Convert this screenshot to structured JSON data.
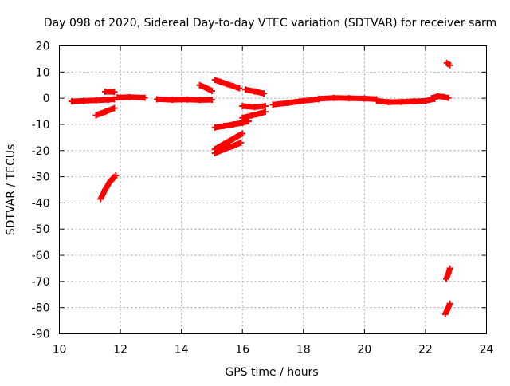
{
  "chart_data": {
    "type": "scatter",
    "title": "Day 098 of 2020, Sidereal Day-to-day VTEC variation (SDTVAR) for receiver sarm",
    "xlabel": "GPS time / hours",
    "ylabel": "SDTVAR / TECUs",
    "xlim": [
      10,
      24
    ],
    "ylim": [
      -90,
      20
    ],
    "xticks": [
      10,
      12,
      14,
      16,
      18,
      20,
      22,
      24
    ],
    "yticks": [
      -90,
      -80,
      -70,
      -60,
      -50,
      -40,
      -30,
      -20,
      -10,
      0,
      10,
      20
    ],
    "xtick_labels": [
      "10",
      "12",
      "14",
      "16",
      "18",
      "20",
      "22",
      "24"
    ],
    "ytick_labels": [
      "-90",
      "-80",
      "-70",
      "-60",
      "-50",
      "-40",
      "-30",
      "-20",
      "-10",
      "0",
      "10",
      "20"
    ],
    "grid": true,
    "legend": "none",
    "marker": "plus",
    "color": "#ff0000",
    "series": [
      {
        "x": [
          10.4,
          10.8,
          11.2,
          11.6,
          11.8
        ],
        "y": [
          -1.2,
          -1.0,
          -0.8,
          -0.6,
          -0.4
        ]
      },
      {
        "x": [
          11.2,
          11.5,
          11.8
        ],
        "y": [
          -6.5,
          -5.2,
          -3.8
        ]
      },
      {
        "x": [
          11.5,
          11.8
        ],
        "y": [
          2.5,
          2.4
        ]
      },
      {
        "x": [
          11.35,
          11.5,
          11.65,
          11.85
        ],
        "y": [
          -38.5,
          -35.0,
          -32.0,
          -29.5
        ]
      },
      {
        "x": [
          11.9,
          12.3,
          12.8
        ],
        "y": [
          0.3,
          0.4,
          0.2
        ]
      },
      {
        "x": [
          13.2,
          13.7,
          14.2,
          14.6,
          15.0
        ],
        "y": [
          -0.4,
          -0.6,
          -0.5,
          -0.7,
          -0.6
        ]
      },
      {
        "x": [
          14.6,
          14.8,
          15.0
        ],
        "y": [
          5.0,
          4.0,
          2.8
        ]
      },
      {
        "x": [
          15.1,
          15.3,
          15.5,
          15.7,
          15.9
        ],
        "y": [
          7.0,
          6.2,
          5.4,
          4.6,
          3.8
        ]
      },
      {
        "x": [
          15.1,
          15.4,
          15.7,
          16.0,
          16.2
        ],
        "y": [
          -11.2,
          -10.6,
          -10.0,
          -9.4,
          -8.8
        ]
      },
      {
        "x": [
          15.1,
          15.4,
          15.7,
          16.0
        ],
        "y": [
          -19.5,
          -17.5,
          -15.5,
          -13.5
        ]
      },
      {
        "x": [
          15.1,
          15.4,
          15.7,
          15.95
        ],
        "y": [
          -21.0,
          -19.5,
          -18.2,
          -17.0
        ]
      },
      {
        "x": [
          16.1,
          16.4,
          16.7
        ],
        "y": [
          3.3,
          2.6,
          1.8
        ]
      },
      {
        "x": [
          16.0,
          16.3,
          16.6,
          16.75
        ],
        "y": [
          -7.5,
          -6.6,
          -5.8,
          -5.2
        ]
      },
      {
        "x": [
          16.0,
          16.4,
          16.75
        ],
        "y": [
          -3.0,
          -3.4,
          -3.0
        ]
      },
      {
        "x": [
          17.0,
          17.5,
          18.0,
          18.5
        ],
        "y": [
          -2.5,
          -1.8,
          -1.0,
          -0.4
        ]
      },
      {
        "x": [
          18.5,
          19.0,
          19.5,
          20.0,
          20.4
        ],
        "y": [
          -0.2,
          0.1,
          0.0,
          -0.1,
          -0.4
        ]
      },
      {
        "x": [
          20.4,
          20.8,
          21.2,
          21.6,
          22.0,
          22.3
        ],
        "y": [
          -1.0,
          -1.5,
          -1.4,
          -1.2,
          -1.0,
          -0.3
        ]
      },
      {
        "x": [
          22.2,
          22.4,
          22.6,
          22.75
        ],
        "y": [
          0.0,
          0.8,
          0.5,
          0.1
        ]
      },
      {
        "x": [
          22.7,
          22.8
        ],
        "y": [
          13.5,
          12.6
        ]
      },
      {
        "x": [
          22.68,
          22.75,
          22.8
        ],
        "y": [
          -69.0,
          -67.0,
          -65.0
        ]
      },
      {
        "x": [
          22.65,
          22.73,
          22.8
        ],
        "y": [
          -82.5,
          -80.5,
          -78.5
        ]
      }
    ]
  }
}
